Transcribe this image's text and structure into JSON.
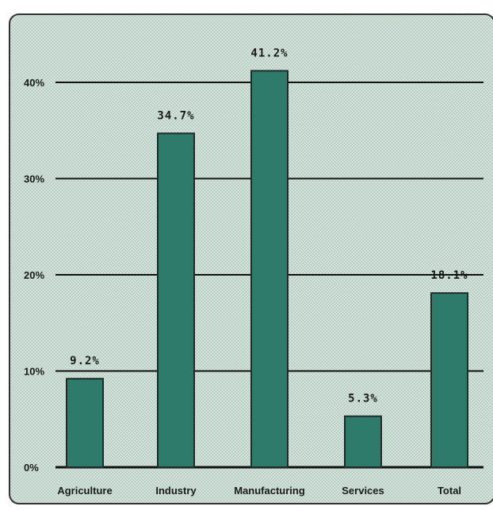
{
  "colors": {
    "panel_background": "#c9dcd2",
    "panel_border": "#333333",
    "bar_fill": "#2e7b6c",
    "bar_stroke": "#1f2b28",
    "grid_line": "#111111",
    "text": "#1a1a1a"
  },
  "chart_data": {
    "type": "bar",
    "title": "",
    "xlabel": "",
    "ylabel": "",
    "categories": [
      "Agriculture",
      "Industry",
      "Manufacturing",
      "Services",
      "Total"
    ],
    "values": [
      9.2,
      34.7,
      41.2,
      5.3,
      18.1
    ],
    "data_labels": [
      "9.2%",
      "34.7%",
      "41.2%",
      "5.3%",
      "18.1%"
    ],
    "ylim": [
      0,
      40
    ],
    "y_ticks": [
      0,
      10,
      20,
      30,
      40
    ],
    "y_tick_labels": [
      "0%",
      "10%",
      "20%",
      "30%",
      "40%"
    ],
    "grid": true,
    "legend": "none"
  }
}
